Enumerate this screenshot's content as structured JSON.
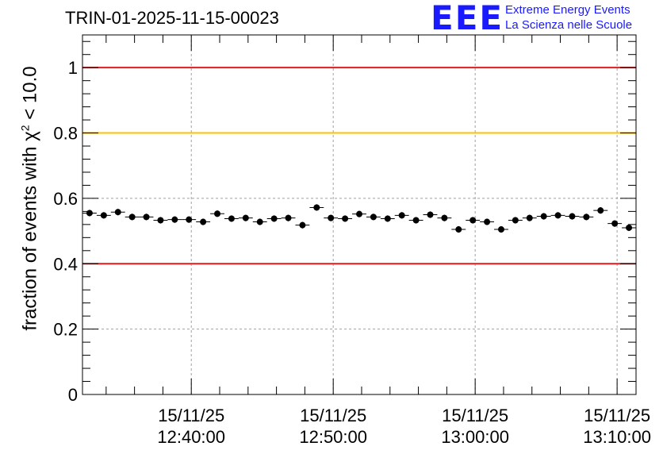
{
  "header": {
    "title": "TRIN-01-2025-11-15-00023",
    "logo_mark": "EEE",
    "logo_line1": "Extreme Energy Events",
    "logo_line2": "La Scienza nelle Scuole"
  },
  "colors": {
    "red_line": "#e41a1c",
    "yellow_line": "#ffc000",
    "marker": "#000000",
    "logo": "#1a1aff"
  },
  "chart_data": {
    "type": "scatter",
    "title": "TRIN-01-2025-11-15-00023",
    "ylabel_prefix": "fraction of events with ",
    "ylabel_symbol": "χ",
    "ylabel_sup": "2",
    "ylabel_suffix": " < 10.0",
    "xlabel": "",
    "xlim": [
      "2025-11-15 12:32:20",
      "2025-11-15 13:11:20"
    ],
    "ylim": [
      0,
      1.1
    ],
    "grid": true,
    "y_ticks": [
      0,
      0.2,
      0.4,
      0.6,
      0.8,
      1
    ],
    "y_tick_labels": [
      "0",
      "0.2",
      "0.4",
      "0.6",
      "0.8",
      "1"
    ],
    "x_tick_times": [
      "2025-11-15 12:40:00",
      "2025-11-15 12:50:00",
      "2025-11-15 13:00:00",
      "2025-11-15 13:10:00"
    ],
    "x_tick_labels": [
      {
        "date": "15/11/25",
        "time": "12:40:00"
      },
      {
        "date": "15/11/25",
        "time": "12:50:00"
      },
      {
        "date": "15/11/25",
        "time": "13:00:00"
      },
      {
        "date": "15/11/25",
        "time": "13:10:00"
      }
    ],
    "reference_lines": [
      {
        "y": 1.0,
        "color": "#e41a1c"
      },
      {
        "y": 0.8,
        "color": "#ffc000"
      },
      {
        "y": 0.4,
        "color": "#e41a1c"
      }
    ],
    "series": [
      {
        "marker": "circle",
        "x": [
          "2025-11-15 12:32:50",
          "2025-11-15 12:33:50",
          "2025-11-15 12:34:50",
          "2025-11-15 12:35:50",
          "2025-11-15 12:36:50",
          "2025-11-15 12:37:50",
          "2025-11-15 12:38:50",
          "2025-11-15 12:39:50",
          "2025-11-15 12:40:50",
          "2025-11-15 12:41:50",
          "2025-11-15 12:42:50",
          "2025-11-15 12:43:50",
          "2025-11-15 12:44:50",
          "2025-11-15 12:45:50",
          "2025-11-15 12:46:50",
          "2025-11-15 12:47:50",
          "2025-11-15 12:48:50",
          "2025-11-15 12:49:50",
          "2025-11-15 12:50:50",
          "2025-11-15 12:51:50",
          "2025-11-15 12:52:50",
          "2025-11-15 12:53:50",
          "2025-11-15 12:54:50",
          "2025-11-15 12:55:50",
          "2025-11-15 12:56:50",
          "2025-11-15 12:57:50",
          "2025-11-15 12:58:50",
          "2025-11-15 12:59:50",
          "2025-11-15 13:00:50",
          "2025-11-15 13:01:50",
          "2025-11-15 13:02:50",
          "2025-11-15 13:03:50",
          "2025-11-15 13:04:50",
          "2025-11-15 13:05:50",
          "2025-11-15 13:06:50",
          "2025-11-15 13:07:50",
          "2025-11-15 13:08:50",
          "2025-11-15 13:09:50",
          "2025-11-15 13:10:50"
        ],
        "y": [
          0.555,
          0.548,
          0.558,
          0.543,
          0.543,
          0.533,
          0.535,
          0.535,
          0.528,
          0.553,
          0.538,
          0.54,
          0.528,
          0.538,
          0.54,
          0.518,
          0.572,
          0.54,
          0.538,
          0.552,
          0.543,
          0.538,
          0.548,
          0.533,
          0.55,
          0.54,
          0.505,
          0.533,
          0.528,
          0.505,
          0.533,
          0.54,
          0.545,
          0.548,
          0.545,
          0.543,
          0.563,
          0.523,
          0.51
        ],
        "y_err": 0.01
      }
    ]
  }
}
